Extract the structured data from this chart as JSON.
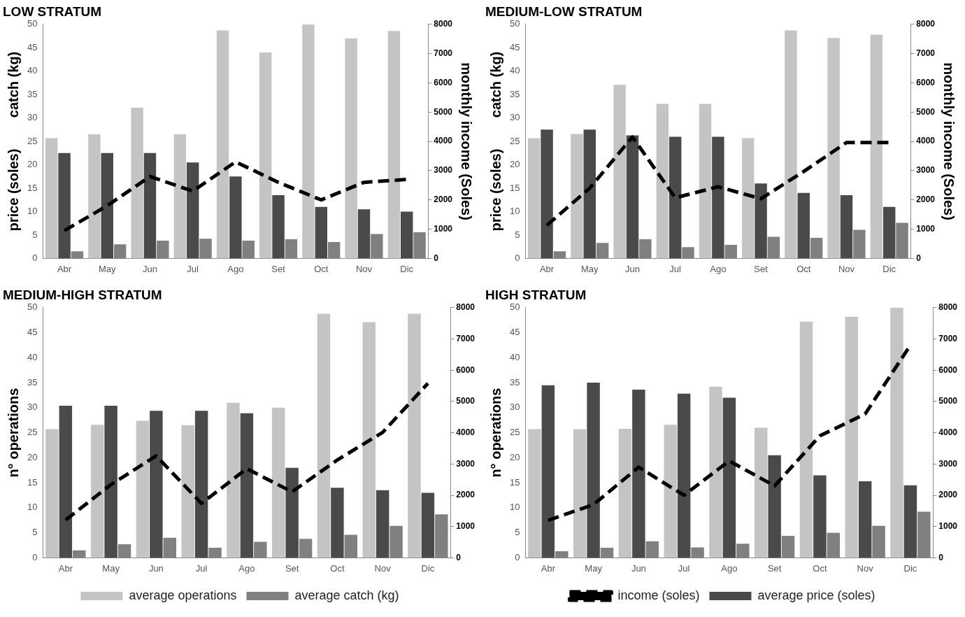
{
  "chart_data": [
    {
      "type": "bar",
      "title": "LOW STRATUM",
      "ylabel": "price (soles)        catch (kg)",
      "y2label": "monthly income (Soles)",
      "categories": [
        "Abr",
        "May",
        "Jun",
        "Jul",
        "Ago",
        "Set",
        "Oct",
        "Nov",
        "Dic"
      ],
      "series": [
        {
          "color": "#c4c4c4",
          "values": [
            25.7,
            26.5,
            32.2,
            26.5,
            48.7,
            44,
            50,
            47,
            48.6
          ]
        },
        {
          "color": "#4a4a4a",
          "values": [
            22.5,
            22.5,
            22.5,
            20.5,
            17.5,
            13.5,
            11,
            10.5,
            10
          ]
        },
        {
          "color": "#808080",
          "values": [
            1.5,
            3,
            3.8,
            4.2,
            3.8,
            4.1,
            3.5,
            5.2,
            5.6
          ]
        },
        {
          "type": "line",
          "axis": "y2",
          "color": "#000000",
          "values": [
            950,
            1800,
            2800,
            2300,
            3300,
            2600,
            2000,
            2600,
            2700
          ]
        }
      ],
      "ylim": [
        0,
        50
      ],
      "yticks": [
        0,
        5,
        10,
        15,
        20,
        25,
        30,
        35,
        40,
        45,
        50
      ],
      "y2lim": [
        0,
        8000
      ],
      "y2ticks": [
        0,
        1000,
        2000,
        3000,
        4000,
        5000,
        6000,
        7000,
        8000
      ],
      "grid": false,
      "legend": false,
      "marker": "none",
      "line_style": "dashed"
    },
    {
      "type": "bar",
      "title": "MEDIUM-LOW STRATUM",
      "ylabel": "price (soles)        catch (kg)",
      "y2label": "monthly income (Soles)",
      "categories": [
        "Abr",
        "May",
        "Jun",
        "Jul",
        "Ago",
        "Set",
        "Oct",
        "Nov",
        "Dic"
      ],
      "series": [
        {
          "color": "#c4c4c4",
          "values": [
            25.7,
            26.6,
            37.1,
            33,
            33,
            25.7,
            48.7,
            47.1,
            47.8
          ]
        },
        {
          "color": "#4a4a4a",
          "values": [
            27.5,
            27.5,
            26.3,
            26,
            26,
            16,
            14,
            13.5,
            11
          ]
        },
        {
          "color": "#808080",
          "values": [
            1.5,
            3.3,
            4.1,
            2.4,
            2.9,
            4.6,
            4.4,
            6.1,
            7.6
          ]
        },
        {
          "type": "line",
          "axis": "y2",
          "color": "#000000",
          "values": [
            1130,
            2400,
            4150,
            2070,
            2450,
            2040,
            2970,
            3960,
            3960
          ]
        }
      ],
      "ylim": [
        0,
        50
      ],
      "yticks": [
        0,
        5,
        10,
        15,
        20,
        25,
        30,
        35,
        40,
        45,
        50
      ],
      "y2lim": [
        0,
        8000
      ],
      "y2ticks": [
        0,
        1000,
        2000,
        3000,
        4000,
        5000,
        6000,
        7000,
        8000
      ],
      "grid": false,
      "legend": false,
      "marker": "none",
      "line_style": "dashed"
    },
    {
      "type": "bar",
      "title": "MEDIUM-HIGH STRATUM",
      "ylabel": "n° operations",
      "categories": [
        "Abr",
        "May",
        "Jun",
        "Jul",
        "Ago",
        "Set",
        "Oct",
        "Nov",
        "Dic"
      ],
      "series": [
        {
          "name": "average operations",
          "color": "#c4c4c4",
          "values": [
            25.7,
            26.6,
            27.4,
            26.5,
            31,
            30,
            48.8,
            47.1,
            48.8
          ]
        },
        {
          "color": "#4a4a4a",
          "values": [
            30.4,
            30.4,
            29.4,
            29.4,
            28.9,
            18,
            14,
            13.5,
            13
          ]
        },
        {
          "name": "average catch (kg)",
          "color": "#808080",
          "values": [
            1.5,
            2.7,
            4,
            2,
            3.2,
            3.8,
            4.6,
            6.4,
            8.7
          ]
        },
        {
          "type": "line",
          "axis": "y2",
          "color": "#000000",
          "values": [
            1210,
            2340,
            3260,
            1740,
            2850,
            2110,
            3130,
            4010,
            5580
          ]
        }
      ],
      "ylim": [
        0,
        50
      ],
      "yticks": [
        0,
        5,
        10,
        15,
        20,
        25,
        30,
        35,
        40,
        45,
        50
      ],
      "y2lim": [
        0,
        8000
      ],
      "y2ticks": [
        0,
        1000,
        2000,
        3000,
        4000,
        5000,
        6000,
        7000,
        8000
      ],
      "grid": false,
      "legend": "bottom",
      "marker": "none",
      "line_style": "dashed"
    },
    {
      "type": "bar",
      "title": "HIGH STRATUM",
      "ylabel": "n° operations",
      "categories": [
        "Abr",
        "May",
        "Jun",
        "Jul",
        "Ago",
        "Set",
        "Oct",
        "Nov",
        "Dic"
      ],
      "series": [
        {
          "color": "#c4c4c4",
          "values": [
            25.7,
            25.7,
            25.8,
            26.6,
            34.2,
            26,
            47.2,
            48.2,
            50
          ]
        },
        {
          "name": "average price (soles)",
          "color": "#4a4a4a",
          "values": [
            34.5,
            35,
            33.6,
            32.8,
            32,
            20.5,
            16.5,
            15.3,
            14.5
          ]
        },
        {
          "color": "#808080",
          "values": [
            1.3,
            2,
            3.3,
            2.1,
            2.8,
            4.4,
            5,
            6.4,
            9.2
          ]
        },
        {
          "name": "income (soles)",
          "type": "line",
          "axis": "y2",
          "color": "#000000",
          "values": [
            1200,
            1700,
            2900,
            2000,
            3100,
            2300,
            3900,
            4600,
            6800
          ]
        }
      ],
      "ylim": [
        0,
        50
      ],
      "yticks": [
        0,
        5,
        10,
        15,
        20,
        25,
        30,
        35,
        40,
        45,
        50
      ],
      "y2lim": [
        0,
        8000
      ],
      "y2ticks": [
        0,
        1000,
        2000,
        3000,
        4000,
        5000,
        6000,
        7000,
        8000
      ],
      "grid": false,
      "legend": "bottom",
      "marker": "none",
      "line_style": "dashed"
    }
  ]
}
